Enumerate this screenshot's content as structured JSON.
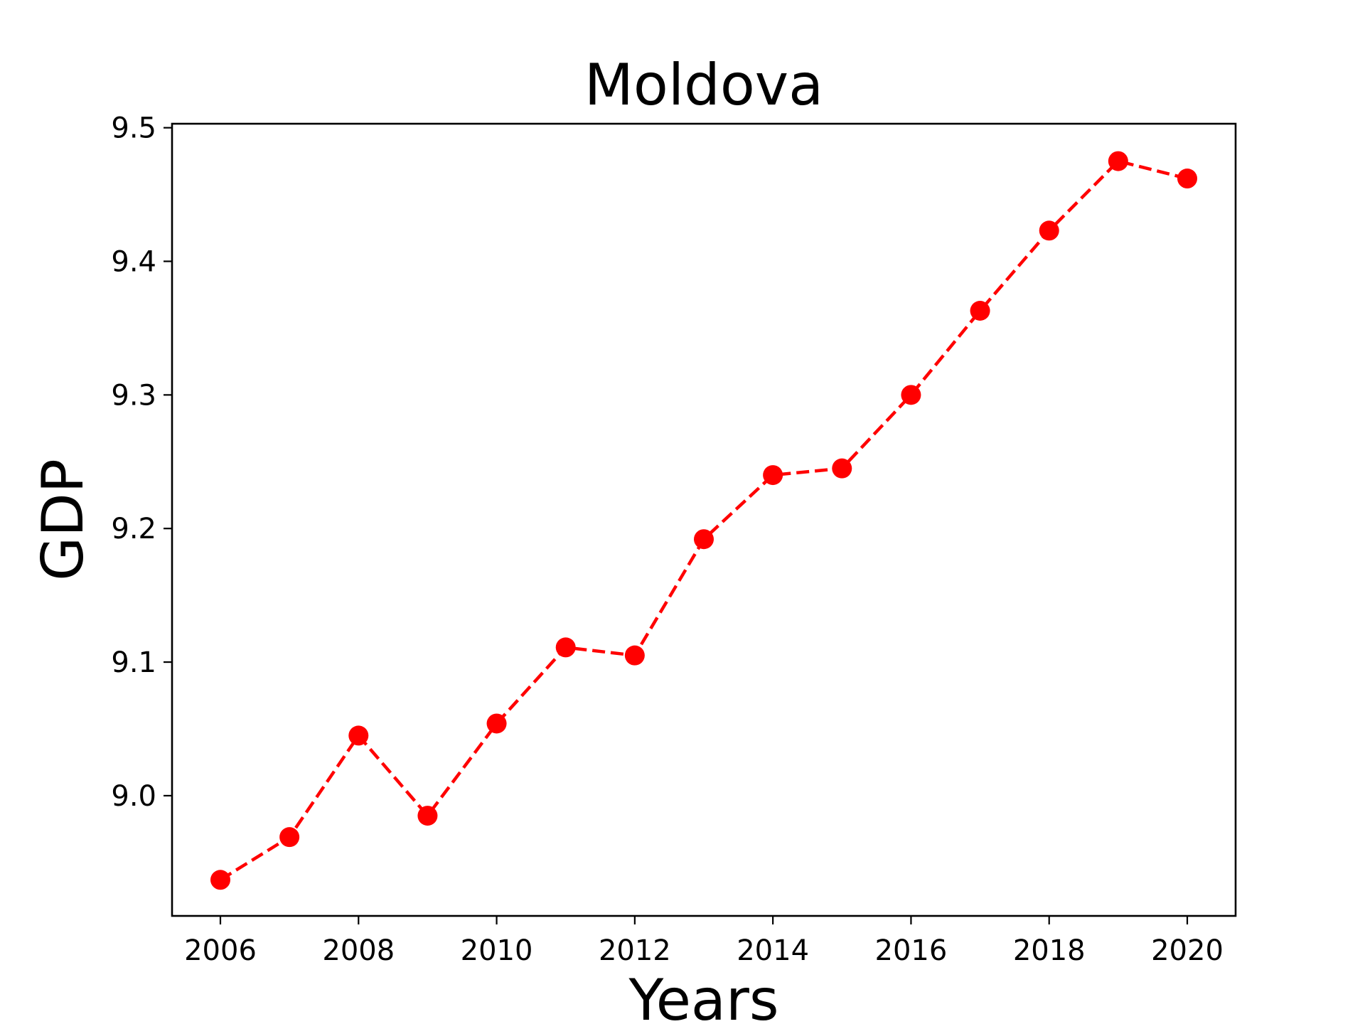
{
  "chart_data": {
    "type": "line",
    "title": "Moldova",
    "xlabel": "Years",
    "ylabel": "GDP",
    "x": [
      2006,
      2007,
      2008,
      2009,
      2010,
      2011,
      2012,
      2013,
      2014,
      2015,
      2016,
      2017,
      2018,
      2019,
      2020
    ],
    "series": [
      {
        "values": [
          8.937,
          8.969,
          9.045,
          8.985,
          9.054,
          9.111,
          9.105,
          9.192,
          9.24,
          9.245,
          9.3,
          9.363,
          9.423,
          9.475,
          9.462
        ],
        "color": "#ff0000",
        "line_style": "dashed",
        "marker": "circle"
      }
    ],
    "xlim": [
      2005.3,
      2020.7
    ],
    "ylim": [
      8.91,
      9.503
    ],
    "x_ticks": [
      2006,
      2008,
      2010,
      2012,
      2014,
      2016,
      2018,
      2020
    ],
    "x_tick_labels": [
      "2006",
      "2008",
      "2010",
      "2012",
      "2014",
      "2016",
      "2018",
      "2020"
    ],
    "y_ticks": [
      9.0,
      9.1,
      9.2,
      9.3,
      9.4,
      9.5
    ],
    "y_tick_labels": [
      "9.0",
      "9.1",
      "9.2",
      "9.3",
      "9.4",
      "9.5"
    ],
    "grid": false,
    "legend": "none"
  }
}
